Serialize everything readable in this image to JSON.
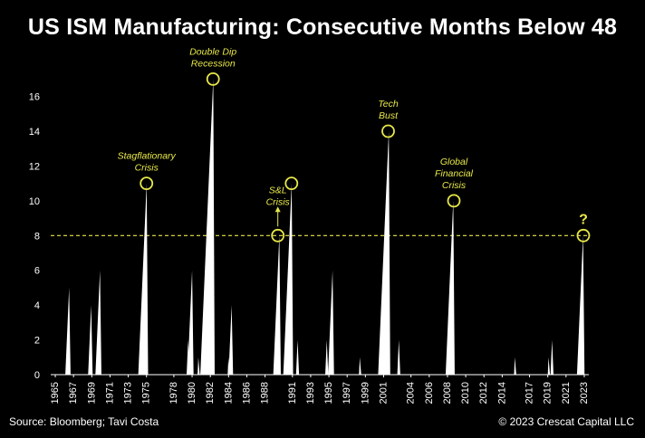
{
  "title": "US ISM Manufacturing: Consecutive Months Below 48",
  "source": "Source: Bloomberg; Tavi Costa",
  "copyright": "© 2023 Crescat Capital LLC",
  "colors": {
    "background": "#000000",
    "spikes": "#ffffff",
    "accent": "#e8e84a",
    "axis": "#ffffff"
  },
  "chart_data": {
    "type": "area",
    "title": "US ISM Manufacturing: Consecutive Months Below 48",
    "xlabel": "",
    "ylabel": "",
    "xlim": [
      1965,
      2024
    ],
    "ylim": [
      0,
      17
    ],
    "y_ticks": [
      0,
      2,
      4,
      6,
      8,
      10,
      12,
      14,
      16
    ],
    "x_ticks": [
      1965,
      1967,
      1969,
      1971,
      1973,
      1975,
      1978,
      1980,
      1982,
      1984,
      1986,
      1988,
      1991,
      1993,
      1995,
      1997,
      1999,
      2001,
      2004,
      2006,
      2008,
      2010,
      2012,
      2014,
      2017,
      2019,
      2021,
      2023
    ],
    "threshold": {
      "value": 8,
      "style": "dashed"
    },
    "series": [
      {
        "name": "Consecutive months below 48",
        "spikes": [
          {
            "start": 1966.6,
            "months": 5
          },
          {
            "start": 1969.1,
            "months": 4
          },
          {
            "start": 1969.9,
            "months": 6
          },
          {
            "start": 1974.6,
            "months": 11
          },
          {
            "start": 1979.9,
            "months": 2
          },
          {
            "start": 1980.0,
            "months": 6
          },
          {
            "start": 1981.1,
            "months": 1
          },
          {
            "start": 1981.4,
            "months": 17
          },
          {
            "start": 1984.4,
            "months": 1
          },
          {
            "start": 1984.5,
            "months": 4
          },
          {
            "start": 1989.4,
            "months": 8
          },
          {
            "start": 1990.5,
            "months": 11
          },
          {
            "start": 1991.9,
            "months": 2
          },
          {
            "start": 1995.1,
            "months": 2
          },
          {
            "start": 1995.4,
            "months": 6
          },
          {
            "start": 1998.8,
            "months": 1
          },
          {
            "start": 2000.9,
            "months": 14
          },
          {
            "start": 2003.0,
            "months": 2
          },
          {
            "start": 2008.3,
            "months": 10
          },
          {
            "start": 2015.8,
            "months": 1
          },
          {
            "start": 2019.5,
            "months": 1
          },
          {
            "start": 2019.8,
            "months": 2
          },
          {
            "start": 2022.7,
            "months": 8
          }
        ]
      }
    ],
    "annotations": [
      {
        "lines": [
          "Stagflationary",
          "Crisis"
        ],
        "x": 1975.5,
        "y": 11
      },
      {
        "lines": [
          "Double Dip",
          "Recession"
        ],
        "x": 1982.8,
        "y": 17
      },
      {
        "lines": [
          "S&L",
          "Crisis"
        ],
        "x": 1989.9,
        "y": 8,
        "arrow": true
      },
      {
        "lines": [],
        "x": 1991.4,
        "y": 11
      },
      {
        "lines": [
          "Tech",
          "Bust"
        ],
        "x": 2002.0,
        "y": 14
      },
      {
        "lines": [
          "Global",
          "Financial",
          "Crisis"
        ],
        "x": 2009.2,
        "y": 10
      },
      {
        "lines": [
          "?"
        ],
        "x": 2023.4,
        "y": 8,
        "question": true
      }
    ]
  }
}
